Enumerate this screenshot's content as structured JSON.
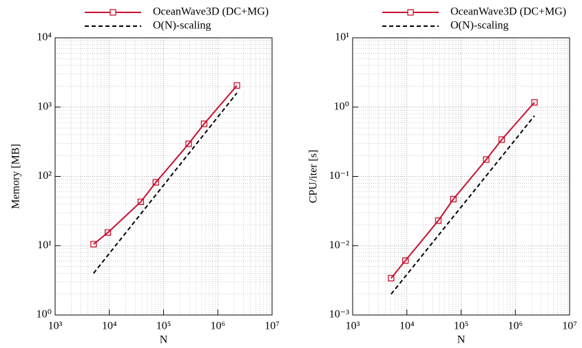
{
  "chart_data": [
    {
      "type": "line",
      "xlabel": "N",
      "ylabel": "Memory [MB]",
      "log_x": true,
      "log_y": true,
      "grid": true,
      "minor_grid": true,
      "legend": "top",
      "xlim": [
        1000,
        10000000
      ],
      "xticks": [
        {
          "value": 1000,
          "label": "10³"
        },
        {
          "value": 10000,
          "label": "10⁴"
        },
        {
          "value": 100000,
          "label": "10⁵"
        },
        {
          "value": 1000000,
          "label": "10⁶"
        },
        {
          "value": 10000000,
          "label": "10⁷"
        }
      ],
      "ylim": [
        1,
        10000
      ],
      "yticks": [
        {
          "value": 1,
          "label": "10⁰"
        },
        {
          "value": 10,
          "label": "10¹"
        },
        {
          "value": 100,
          "label": "10²"
        },
        {
          "value": 1000,
          "label": "10³"
        },
        {
          "value": 10000,
          "label": "10⁴"
        }
      ],
      "series": [
        {
          "name": "OceanWave3D (DC+MG)",
          "color": "#c8102e",
          "marker": "square",
          "dashed": false,
          "x": [
            5120,
            9400,
            38000,
            72000,
            290000,
            560000,
            2250000
          ],
          "values": [
            10.5,
            15.5,
            43,
            82,
            295,
            575,
            2050
          ]
        },
        {
          "name": "O(N)-scaling",
          "color": "#000000",
          "marker": "none",
          "dashed": true,
          "x": [
            5120,
            2250000
          ],
          "values": [
            4,
            1600
          ]
        }
      ]
    },
    {
      "type": "line",
      "xlabel": "N",
      "ylabel": "CPU/iter [s]",
      "log_x": true,
      "log_y": true,
      "grid": true,
      "minor_grid": true,
      "legend": "top",
      "xlim": [
        1000,
        10000000
      ],
      "xticks": [
        {
          "value": 1000,
          "label": "10³"
        },
        {
          "value": 10000,
          "label": "10⁴"
        },
        {
          "value": 100000,
          "label": "10⁵"
        },
        {
          "value": 1000000,
          "label": "10⁶"
        },
        {
          "value": 10000000,
          "label": "10⁷"
        }
      ],
      "ylim": [
        0.001,
        10
      ],
      "yticks": [
        {
          "value": 0.001,
          "label": "10⁻³"
        },
        {
          "value": 0.01,
          "label": "10⁻²"
        },
        {
          "value": 0.1,
          "label": "10⁻¹"
        },
        {
          "value": 1,
          "label": "10⁰"
        },
        {
          "value": 10,
          "label": "10¹"
        }
      ],
      "series": [
        {
          "name": "OceanWave3D (DC+MG)",
          "color": "#c8102e",
          "marker": "square",
          "dashed": false,
          "x": [
            5120,
            9400,
            38000,
            72000,
            290000,
            560000,
            2250000
          ],
          "values": [
            0.0034,
            0.0061,
            0.023,
            0.047,
            0.175,
            0.34,
            1.17
          ]
        },
        {
          "name": "O(N)-scaling",
          "color": "#000000",
          "marker": "none",
          "dashed": true,
          "x": [
            5120,
            2250000
          ],
          "values": [
            0.002,
            0.75
          ]
        }
      ]
    }
  ]
}
